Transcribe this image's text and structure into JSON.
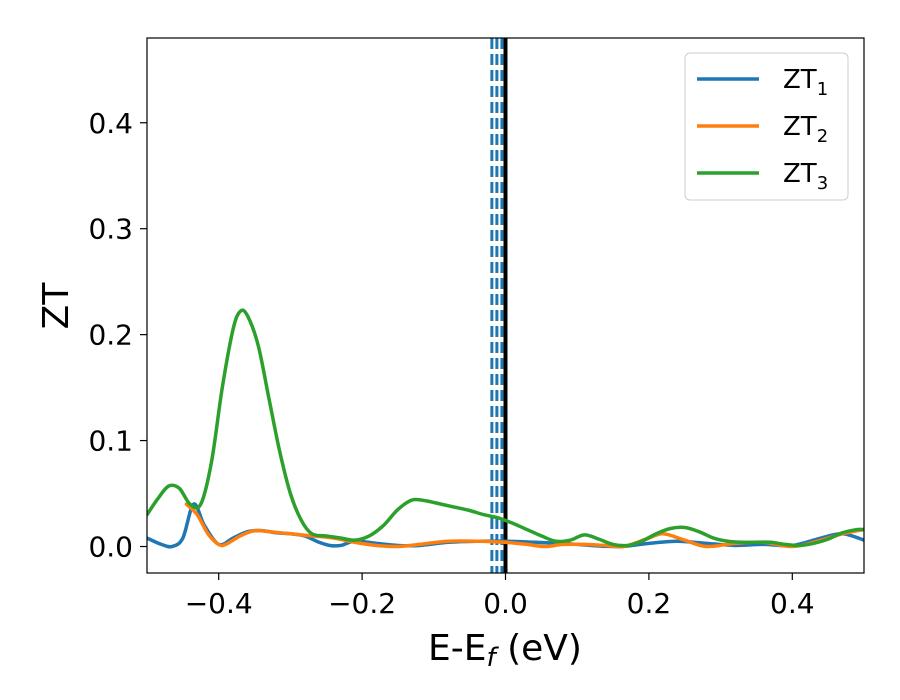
{
  "chart_data": {
    "type": "line",
    "title": "",
    "xlabel": "E-E",
    "xlabel_sub": "f",
    "xlabel_unit": " (eV)",
    "ylabel": "ZT",
    "xlim": [
      -0.5,
      0.5
    ],
    "ylim": [
      -0.025,
      0.48
    ],
    "xticks": [
      -0.4,
      -0.2,
      0.0,
      0.2,
      0.4
    ],
    "xtick_labels": [
      "−0.4",
      "−0.2",
      "0.0",
      "0.2",
      "0.4"
    ],
    "yticks": [
      0.0,
      0.1,
      0.2,
      0.3,
      0.4
    ],
    "ytick_labels": [
      "0.0",
      "0.1",
      "0.2",
      "0.3",
      "0.4"
    ],
    "grid": false,
    "legend_position": "top-right",
    "solid_vline_x": 0.0,
    "dashed_vlines_x": [
      -0.019,
      -0.012,
      -0.005
    ],
    "series": [
      {
        "name": "ZT",
        "name_sub": "1",
        "color": "#1f77b4",
        "x": [
          -0.5,
          -0.48,
          -0.465,
          -0.45,
          -0.435,
          -0.42,
          -0.4,
          -0.38,
          -0.36,
          -0.34,
          -0.32,
          -0.3,
          -0.28,
          -0.26,
          -0.245,
          -0.23,
          -0.21,
          -0.18,
          -0.15,
          -0.12,
          -0.08,
          -0.04,
          0.0,
          0.04,
          0.08,
          0.12,
          0.16,
          0.2,
          0.24,
          0.28,
          0.32,
          0.36,
          0.4,
          0.44,
          0.47,
          0.5
        ],
        "y": [
          0.008,
          0.002,
          0.0,
          0.008,
          0.04,
          0.02,
          0.002,
          0.008,
          0.014,
          0.015,
          0.013,
          0.012,
          0.01,
          0.004,
          0.001,
          0.001,
          0.005,
          0.003,
          0.001,
          0.001,
          0.004,
          0.005,
          0.005,
          0.004,
          0.003,
          0.001,
          0.0,
          0.003,
          0.005,
          0.003,
          0.001,
          0.002,
          0.001,
          0.008,
          0.012,
          0.006
        ]
      },
      {
        "name": "ZT",
        "name_sub": "2",
        "color": "#ff7f0e",
        "x": [
          -0.445,
          -0.43,
          -0.415,
          -0.4,
          -0.39,
          -0.37,
          -0.35,
          -0.33,
          -0.3,
          -0.27,
          -0.24,
          -0.21,
          -0.18,
          -0.15,
          -0.12,
          -0.08,
          -0.04,
          0.0,
          0.03,
          0.055,
          0.08,
          0.11,
          0.14,
          0.165,
          0.2,
          0.22,
          0.25,
          0.28,
          0.32,
          0.36,
          0.4,
          0.44,
          0.47,
          0.5
        ],
        "y": [
          0.04,
          0.03,
          0.012,
          0.002,
          0.002,
          0.01,
          0.015,
          0.014,
          0.012,
          0.01,
          0.008,
          0.004,
          0.001,
          0.0,
          0.002,
          0.005,
          0.005,
          0.004,
          0.002,
          0.0,
          0.002,
          0.002,
          0.001,
          0.0,
          0.008,
          0.012,
          0.006,
          0.0,
          0.003,
          0.004,
          0.0,
          0.006,
          0.012,
          0.016
        ]
      },
      {
        "name": "ZT",
        "name_sub": "3",
        "color": "#2ca02c",
        "x": [
          -0.5,
          -0.485,
          -0.47,
          -0.455,
          -0.44,
          -0.425,
          -0.41,
          -0.395,
          -0.38,
          -0.37,
          -0.36,
          -0.345,
          -0.33,
          -0.315,
          -0.3,
          -0.285,
          -0.27,
          -0.25,
          -0.23,
          -0.21,
          -0.19,
          -0.17,
          -0.15,
          -0.13,
          -0.11,
          -0.09,
          -0.07,
          -0.05,
          -0.03,
          -0.01,
          0.01,
          0.03,
          0.05,
          0.07,
          0.09,
          0.11,
          0.13,
          0.15,
          0.17,
          0.19,
          0.21,
          0.23,
          0.25,
          0.27,
          0.29,
          0.31,
          0.33,
          0.35,
          0.37,
          0.39,
          0.41,
          0.43,
          0.45,
          0.47,
          0.49,
          0.5
        ],
        "y": [
          0.03,
          0.045,
          0.057,
          0.055,
          0.04,
          0.04,
          0.08,
          0.15,
          0.205,
          0.222,
          0.218,
          0.19,
          0.14,
          0.09,
          0.05,
          0.025,
          0.012,
          0.01,
          0.008,
          0.006,
          0.01,
          0.02,
          0.035,
          0.044,
          0.043,
          0.04,
          0.037,
          0.034,
          0.03,
          0.027,
          0.022,
          0.016,
          0.01,
          0.005,
          0.006,
          0.011,
          0.007,
          0.002,
          0.001,
          0.005,
          0.012,
          0.017,
          0.018,
          0.014,
          0.008,
          0.005,
          0.004,
          0.004,
          0.004,
          0.002,
          0.001,
          0.003,
          0.007,
          0.013,
          0.016,
          0.016
        ]
      }
    ]
  }
}
